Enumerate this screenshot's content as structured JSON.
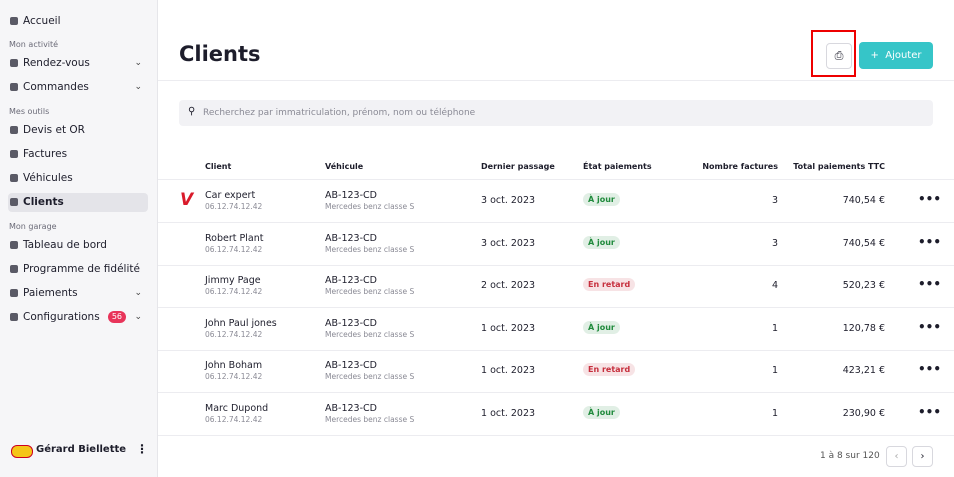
{
  "sidebar": {
    "sections": [
      {
        "items": [
          {
            "label": "Accueil"
          }
        ]
      },
      {
        "title": "Mon activité",
        "items": [
          {
            "label": "Rendez-vous",
            "expandable": true
          },
          {
            "label": "Commandes",
            "expandable": true
          }
        ]
      },
      {
        "title": "Mes outils",
        "items": [
          {
            "label": "Devis et OR"
          },
          {
            "label": "Factures"
          },
          {
            "label": "Véhicules"
          },
          {
            "label": "Clients",
            "active": true
          }
        ]
      },
      {
        "title": "Mon garage",
        "items": [
          {
            "label": "Tableau de bord"
          },
          {
            "label": "Programme de fidélité"
          },
          {
            "label": "Paiements",
            "expandable": true
          },
          {
            "label": "Configurations",
            "expandable": true,
            "badge": 56
          }
        ]
      }
    ],
    "user": "Gérard Biellette"
  },
  "header": {
    "title": "Clients",
    "add_button": "Ajouter"
  },
  "search": {
    "placeholder": "Recherchez par immatriculation, prénom, nom ou téléphone"
  },
  "table": {
    "columns": [
      "Client",
      "Véhicule",
      "Dernier passage",
      "État paiements",
      "Nombre factures",
      "Total paiements TTC"
    ],
    "rows": [
      {
        "name": "Car expert",
        "phone": "06.12.74.12.42",
        "plate": "AB-123-CD",
        "model": "Mercedes benz classe S",
        "date": "3 oct. 2023",
        "status": "À jour",
        "status_color": "#1f8a3b",
        "invoices": 3,
        "total": "740,54 €"
      },
      {
        "name": "Robert Plant",
        "phone": "06.12.74.12.42",
        "plate": "AB-123-CD",
        "model": "Mercedes benz classe S",
        "date": "3 oct. 2023",
        "status": "À jour",
        "status_color": "#1f8a3b",
        "invoices": 3,
        "total": "740,54 €"
      },
      {
        "name": "Jimmy Page",
        "phone": "06.12.74.12.42",
        "plate": "AB-123-CD",
        "model": "Mercedes benz classe S",
        "date": "2 oct. 2023",
        "status": "En retard",
        "status_color": "#c62f3d",
        "invoices": 4,
        "total": "520,23 €"
      },
      {
        "name": "John Paul jones",
        "phone": "06.12.74.12.42",
        "plate": "AB-123-CD",
        "model": "Mercedes benz classe S",
        "date": "1 oct. 2023",
        "status": "À jour",
        "status_color": "#1f8a3b",
        "invoices": 1,
        "total": "120,78 €"
      },
      {
        "name": "John Boham",
        "phone": "06.12.74.12.42",
        "plate": "AB-123-CD",
        "model": "Mercedes benz classe S",
        "date": "1 oct. 2023",
        "status": "En retard",
        "status_color": "#c62f3d",
        "invoices": 1,
        "total": "423,21 €"
      },
      {
        "name": "Marc Dupond",
        "phone": "06.12.74.12.42",
        "plate": "AB-123-CD",
        "model": "Mercedes benz classe S",
        "date": "1 oct. 2023",
        "status": "À jour",
        "status_color": "#1f8a3b",
        "invoices": 1,
        "total": "230,90 €"
      }
    ]
  },
  "pagination": "1 à 8 sur 120"
}
